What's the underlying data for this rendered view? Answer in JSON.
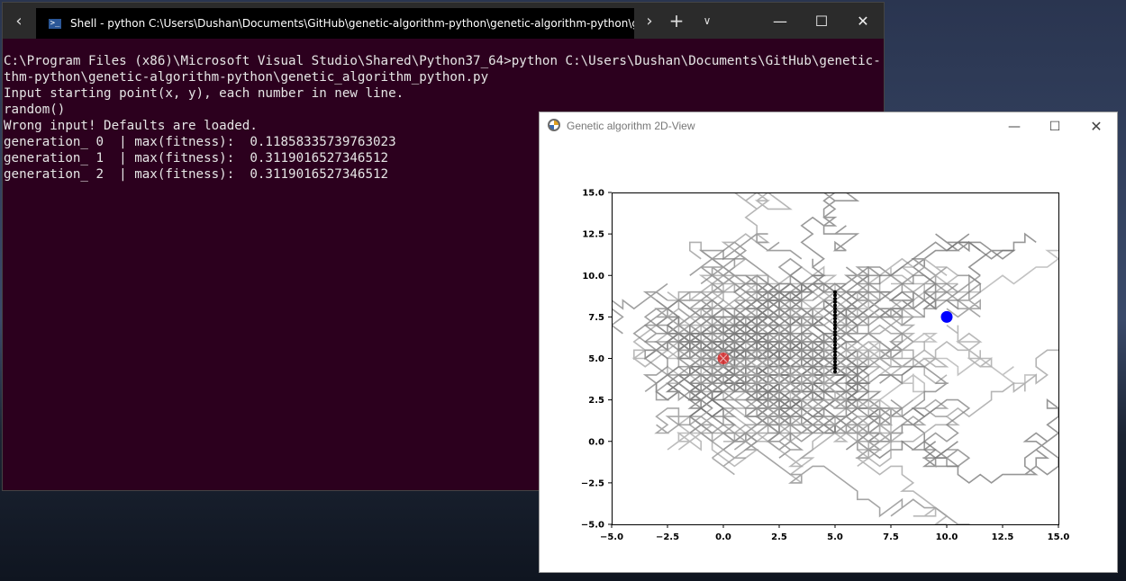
{
  "terminal": {
    "tab_title": "Shell - python  C:\\Users\\Dushan\\Documents\\GitHub\\genetic-algorithm-python\\genetic-algorithm-python\\genetic_algo",
    "icons": {
      "back": "chevron-left-icon",
      "forward": "chevron-right-icon",
      "new_tab": "plus-icon",
      "tab_menu": "chevron-down-icon",
      "shell": "powershell-icon"
    },
    "lines": [
      "C:\\Program Files (x86)\\Microsoft Visual Studio\\Shared\\Python37_64>python C:\\Users\\Dushan\\Documents\\GitHub\\genetic-algori",
      "thm-python\\genetic-algorithm-python\\genetic_algorithm_python.py",
      "Input starting point(x, y), each number in new line.",
      "random()",
      "Wrong input! Defaults are loaded.",
      "generation_ 0  | max(fitness):  0.11858335739763023",
      "generation_ 1  | max(fitness):  0.3119016527346512",
      "generation_ 2  | max(fitness):  0.3119016527346512"
    ],
    "colors": {
      "background": "#2c001e",
      "text": "#e6e6e6"
    }
  },
  "figure": {
    "title": "Genetic algorithm 2D-View",
    "chart_data": {
      "type": "line",
      "title": "",
      "xlabel": "",
      "ylabel": "",
      "xlim": [
        -5.0,
        15.0
      ],
      "ylim": [
        -5.0,
        15.0
      ],
      "x_ticks": [
        "−5.0",
        "−2.5",
        "0.0",
        "2.5",
        "5.0",
        "7.5",
        "10.0",
        "12.5",
        "15.0"
      ],
      "y_ticks": [
        "−5.0",
        "−2.5",
        "0.0",
        "2.5",
        "5.0",
        "7.5",
        "10.0",
        "12.5",
        "15.0"
      ],
      "grid": false,
      "series": [
        {
          "role": "start",
          "marker": "x",
          "color": "#d62728",
          "x": [
            0.0
          ],
          "y": [
            5.0
          ]
        },
        {
          "role": "goal",
          "marker": "o",
          "color": "#0000ff",
          "x": [
            10.0
          ],
          "y": [
            7.5
          ]
        },
        {
          "role": "obstacle",
          "marker": ".",
          "color": "#000000",
          "x": [
            5.0,
            5.0
          ],
          "y": [
            4.2,
            9.0
          ]
        },
        {
          "role": "paths",
          "color": "#808080",
          "note_values": "random-walk step paths, approx extent",
          "x": [
            -5.0,
            15.0
          ],
          "y": [
            -1.0,
            14.0
          ]
        }
      ]
    }
  }
}
